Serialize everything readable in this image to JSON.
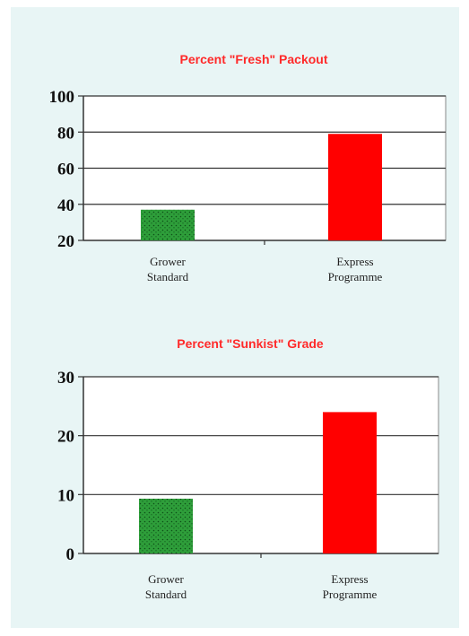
{
  "chart_data": [
    {
      "type": "bar",
      "title": "Percent \"Fresh\" Packout",
      "categories": [
        [
          "Grower",
          "Standard"
        ],
        [
          "Express",
          "Programme"
        ]
      ],
      "values": [
        37,
        79
      ],
      "ylim": [
        20,
        100
      ],
      "yticks": [
        20,
        40,
        60,
        80,
        100
      ],
      "grid": true,
      "bar_colors": [
        "#2e9e3a",
        "#ff0000"
      ],
      "bar_patterns": [
        "dotted",
        "solid"
      ]
    },
    {
      "type": "bar",
      "title": "Percent \"Sunkist\" Grade",
      "categories": [
        [
          "Grower",
          "Standard"
        ],
        [
          "Express",
          "Programme"
        ]
      ],
      "values": [
        9.3,
        24
      ],
      "ylim": [
        0,
        30
      ],
      "yticks": [
        0,
        10,
        20,
        30
      ],
      "grid": true,
      "bar_colors": [
        "#2e9e3a",
        "#ff0000"
      ],
      "bar_patterns": [
        "dotted",
        "solid"
      ]
    }
  ],
  "style": {
    "panel_bg": "#e8f5f5",
    "title_color": "#ff2a2a"
  }
}
